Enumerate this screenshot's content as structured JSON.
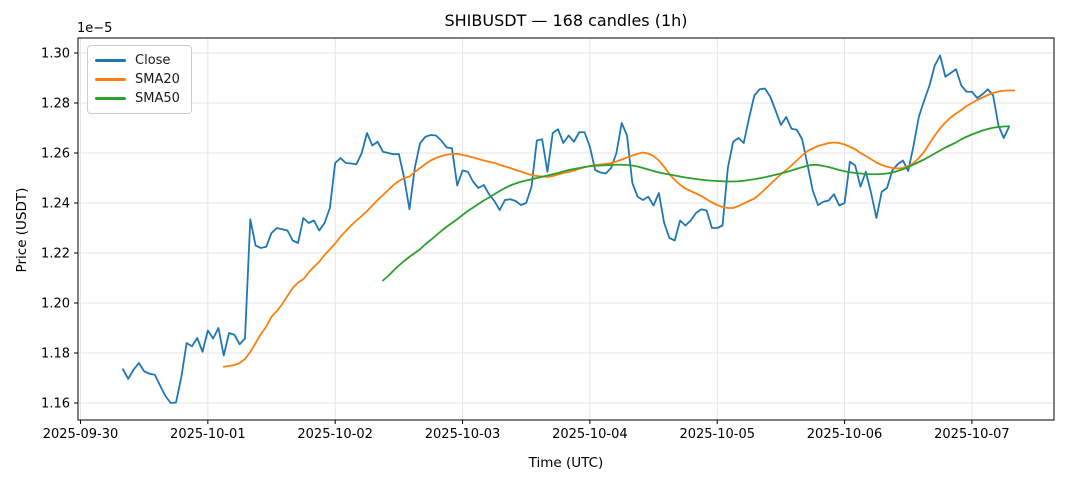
{
  "chart_data": {
    "type": "line",
    "title": "SHIBUSDT — 168 candles (1h)",
    "xlabel": "Time (UTC)",
    "ylabel": "Price (USDT)",
    "offset_text": "1e−5",
    "grid": true,
    "legend_position": "upper left",
    "background": "#ffffff",
    "grid_color": "#e5e5e5",
    "axis_color": "#000000",
    "ylim": [
      1.1532,
      1.306
    ],
    "xlim_index": [
      -8.47,
      175.47
    ],
    "y_ticks": [
      {
        "value": 1.16,
        "label": "1.16"
      },
      {
        "value": 1.18,
        "label": "1.18"
      },
      {
        "value": 1.2,
        "label": "1.20"
      },
      {
        "value": 1.22,
        "label": "1.22"
      },
      {
        "value": 1.24,
        "label": "1.24"
      },
      {
        "value": 1.26,
        "label": "1.26"
      },
      {
        "value": 1.28,
        "label": "1.28"
      },
      {
        "value": 1.3,
        "label": "1.30"
      }
    ],
    "x_ticks": [
      {
        "index": -8,
        "label": "2025-09-30"
      },
      {
        "index": 16,
        "label": "2025-10-01"
      },
      {
        "index": 40,
        "label": "2025-10-02"
      },
      {
        "index": 64,
        "label": "2025-10-03"
      },
      {
        "index": 88,
        "label": "2025-10-04"
      },
      {
        "index": 112,
        "label": "2025-10-05"
      },
      {
        "index": 136,
        "label": "2025-10-06"
      },
      {
        "index": 160,
        "label": "2025-10-07"
      }
    ],
    "series": [
      {
        "name": "Close",
        "color": "#1f77b4",
        "start_index": 0,
        "values": [
          1.1735,
          1.1697,
          1.1733,
          1.176,
          1.1727,
          1.1717,
          1.1713,
          1.167,
          1.1628,
          1.16,
          1.1602,
          1.1703,
          1.184,
          1.1827,
          1.186,
          1.1805,
          1.189,
          1.1858,
          1.19,
          1.179,
          1.188,
          1.1873,
          1.1835,
          1.1858,
          1.2335,
          1.223,
          1.222,
          1.2225,
          1.228,
          1.23,
          1.2295,
          1.229,
          1.225,
          1.224,
          1.234,
          1.232,
          1.233,
          1.229,
          1.232,
          1.238,
          1.256,
          1.258,
          1.256,
          1.2558,
          1.2555,
          1.26,
          1.268,
          1.263,
          1.2645,
          1.2605,
          1.26,
          1.2595,
          1.2596,
          1.25,
          1.2375,
          1.254,
          1.2639,
          1.2665,
          1.2672,
          1.267,
          1.265,
          1.2622,
          1.2619,
          1.247,
          1.253,
          1.2525,
          1.2485,
          1.246,
          1.2472,
          1.2435,
          1.2408,
          1.2372,
          1.2412,
          1.2415,
          1.2408,
          1.2392,
          1.24,
          1.2465,
          1.265,
          1.2655,
          1.2525,
          1.268,
          1.2695,
          1.264,
          1.267,
          1.2645,
          1.2683,
          1.2683,
          1.2625,
          1.2532,
          1.2522,
          1.2518,
          1.254,
          1.26,
          1.272,
          1.267,
          1.248,
          1.2425,
          1.2412,
          1.2425,
          1.239,
          1.244,
          1.232,
          1.226,
          1.225,
          1.233,
          1.231,
          1.233,
          1.236,
          1.2375,
          1.237,
          1.23,
          1.23,
          1.231,
          1.254,
          1.2645,
          1.266,
          1.264,
          1.274,
          1.283,
          1.2855,
          1.2858,
          1.2825,
          1.277,
          1.2712,
          1.2744,
          1.2697,
          1.2693,
          1.2655,
          1.2555,
          1.245,
          1.2392,
          1.2405,
          1.241,
          1.2435,
          1.239,
          1.24,
          1.2565,
          1.255,
          1.2465,
          1.2525,
          1.244,
          1.234,
          1.2445,
          1.246,
          1.253,
          1.2555,
          1.257,
          1.2528,
          1.263,
          1.2745,
          1.281,
          1.287,
          1.295,
          1.299,
          1.2905,
          1.292,
          1.2935,
          1.287,
          1.2845,
          1.2845,
          1.282,
          1.2835,
          1.2855,
          1.283,
          1.271,
          1.266,
          1.2705
        ]
      },
      {
        "name": "SMA20",
        "color": "#ff7f0e",
        "start_index": 19,
        "values": [
          1.1745,
          1.1748,
          1.1752,
          1.176,
          1.1776,
          1.1805,
          1.184,
          1.1876,
          1.1905,
          1.1945,
          1.1968,
          1.1995,
          1.2028,
          1.206,
          1.2082,
          1.2095,
          1.2122,
          1.2145,
          1.2165,
          1.2192,
          1.2215,
          1.2238,
          1.2265,
          1.2288,
          1.231,
          1.233,
          1.2348,
          1.2368,
          1.239,
          1.2412,
          1.2432,
          1.2452,
          1.2472,
          1.2488,
          1.25,
          1.2506,
          1.2524,
          1.254,
          1.2556,
          1.257,
          1.258,
          1.2588,
          1.2593,
          1.2596,
          1.2597,
          1.2592,
          1.2588,
          1.2582,
          1.2576,
          1.257,
          1.2565,
          1.256,
          1.2553,
          1.2546,
          1.254,
          1.2532,
          1.2526,
          1.2518,
          1.2512,
          1.2508,
          1.2506,
          1.2504,
          1.2508,
          1.2514,
          1.252,
          1.2524,
          1.253,
          1.2537,
          1.2543,
          1.2548,
          1.2552,
          1.2554,
          1.2556,
          1.256,
          1.2566,
          1.2574,
          1.2582,
          1.259,
          1.2597,
          1.2602,
          1.2598,
          1.2588,
          1.257,
          1.2545,
          1.2515,
          1.2492,
          1.2473,
          1.2458,
          1.2448,
          1.2438,
          1.2428,
          1.2415,
          1.2402,
          1.2392,
          1.2384,
          1.238,
          1.238,
          1.2388,
          1.2398,
          1.2408,
          1.2418,
          1.2435,
          1.2455,
          1.2475,
          1.2495,
          1.2515,
          1.2532,
          1.255,
          1.257,
          1.259,
          1.2608,
          1.2618,
          1.2628,
          1.2634,
          1.264,
          1.2642,
          1.264,
          1.2634,
          1.2625,
          1.2615,
          1.26,
          1.2588,
          1.2575,
          1.2562,
          1.2552,
          1.2545,
          1.254,
          1.2538,
          1.254,
          1.2548,
          1.256,
          1.258,
          1.2605,
          1.2638,
          1.267,
          1.2698,
          1.2722,
          1.2742,
          1.2758,
          1.2772,
          1.2788,
          1.28,
          1.2812,
          1.2822,
          1.2832,
          1.284,
          1.2846,
          1.2849,
          1.285,
          1.285
        ]
      },
      {
        "name": "SMA50",
        "color": "#2ca02c",
        "start_index": 49,
        "values": [
          1.209,
          1.2108,
          1.213,
          1.215,
          1.2168,
          1.2185,
          1.22,
          1.2215,
          1.2235,
          1.2252,
          1.227,
          1.2288,
          1.2305,
          1.232,
          1.2335,
          1.2352,
          1.2368,
          1.2382,
          1.2396,
          1.241,
          1.2422,
          1.2435,
          1.2448,
          1.246,
          1.247,
          1.2478,
          1.2485,
          1.249,
          1.2495,
          1.25,
          1.2505,
          1.251,
          1.2515,
          1.252,
          1.2526,
          1.2532,
          1.2536,
          1.254,
          1.2544,
          1.2547,
          1.2549,
          1.255,
          1.2551,
          1.2552,
          1.2553,
          1.2553,
          1.2552,
          1.255,
          1.2546,
          1.254,
          1.2534,
          1.2528,
          1.2522,
          1.2518,
          1.2514,
          1.251,
          1.2506,
          1.2502,
          1.2499,
          1.2496,
          1.2493,
          1.2491,
          1.2489,
          1.2488,
          1.2487,
          1.2486,
          1.2486,
          1.2487,
          1.2489,
          1.2492,
          1.2495,
          1.2499,
          1.2503,
          1.2508,
          1.2513,
          1.2518,
          1.2524,
          1.253,
          1.2537,
          1.2543,
          1.2549,
          1.2553,
          1.2552,
          1.2548,
          1.2544,
          1.2538,
          1.2532,
          1.2527,
          1.2523,
          1.252,
          1.2518,
          1.2516,
          1.2515,
          1.2515,
          1.2516,
          1.2518,
          1.2522,
          1.2528,
          1.2535,
          1.2544,
          1.2554,
          1.2564,
          1.2574,
          1.2586,
          1.2598,
          1.261,
          1.2622,
          1.2632,
          1.2642,
          1.2655,
          1.2665,
          1.2674,
          1.2682,
          1.269,
          1.2696,
          1.2701,
          1.2704,
          1.2706,
          1.2707
        ]
      }
    ]
  }
}
